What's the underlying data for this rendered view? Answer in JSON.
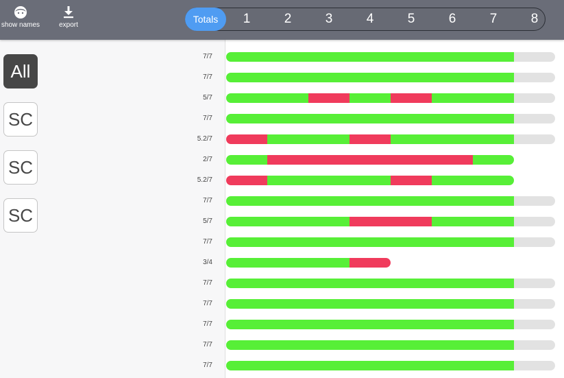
{
  "toolbar": {
    "show_names_label": "show names",
    "show_names_icon": "face-icon",
    "export_label": "export",
    "export_icon": "download-icon"
  },
  "tabs": [
    {
      "label": "Totals",
      "active": true
    },
    {
      "label": "1"
    },
    {
      "label": "2"
    },
    {
      "label": "3"
    },
    {
      "label": "4"
    },
    {
      "label": "5"
    },
    {
      "label": "6"
    },
    {
      "label": "7"
    },
    {
      "label": "8"
    }
  ],
  "filters": [
    {
      "label": "All",
      "active": true
    },
    {
      "label": "SC"
    },
    {
      "label": "SC"
    },
    {
      "label": "SC"
    }
  ],
  "colors": {
    "pass": "#57ef37",
    "fail": "#f03b5c",
    "empty": "#e2e2e2",
    "active_tab": "#4f9cf2"
  },
  "total_parts": 8,
  "rows": [
    {
      "score": "7/7",
      "marks": [
        "p",
        "p",
        "p",
        "p",
        "p",
        "p",
        "p"
      ]
    },
    {
      "score": "7/7",
      "marks": [
        "p",
        "p",
        "p",
        "p",
        "p",
        "p",
        "p"
      ]
    },
    {
      "score": "5/7",
      "marks": [
        "p",
        "p",
        "f",
        "p",
        "f",
        "p",
        "p"
      ]
    },
    {
      "score": "7/7",
      "marks": [
        "p",
        "p",
        "p",
        "p",
        "p",
        "p",
        "p"
      ]
    },
    {
      "score": "5.2/7",
      "marks": [
        "f",
        "p",
        "p",
        "f",
        "p",
        "p",
        "p"
      ]
    },
    {
      "score": "2/7",
      "marks": [
        "p",
        "f",
        "f",
        "f",
        "f",
        "f",
        "p"
      ]
    },
    {
      "score": "5.2/7",
      "marks": [
        "f",
        "p",
        "p",
        "p",
        "f",
        "p",
        "p"
      ]
    },
    {
      "score": "7/7",
      "marks": [
        "p",
        "p",
        "p",
        "p",
        "p",
        "p",
        "p"
      ]
    },
    {
      "score": "5/7",
      "marks": [
        "p",
        "p",
        "p",
        "f",
        "f",
        "p",
        "p"
      ]
    },
    {
      "score": "7/7",
      "marks": [
        "p",
        "p",
        "p",
        "p",
        "p",
        "p",
        "p"
      ]
    },
    {
      "score": "3/4",
      "marks": [
        "p",
        "p",
        "p",
        "f"
      ]
    },
    {
      "score": "7/7",
      "marks": [
        "p",
        "p",
        "p",
        "p",
        "p",
        "p",
        "p"
      ]
    },
    {
      "score": "7/7",
      "marks": [
        "p",
        "p",
        "p",
        "p",
        "p",
        "p",
        "p"
      ]
    },
    {
      "score": "7/7",
      "marks": [
        "p",
        "p",
        "p",
        "p",
        "p",
        "p",
        "p"
      ]
    },
    {
      "score": "7/7",
      "marks": [
        "p",
        "p",
        "p",
        "p",
        "p",
        "p",
        "p"
      ]
    },
    {
      "score": "7/7",
      "marks": [
        "p",
        "p",
        "p",
        "p",
        "p",
        "p",
        "p"
      ]
    }
  ]
}
